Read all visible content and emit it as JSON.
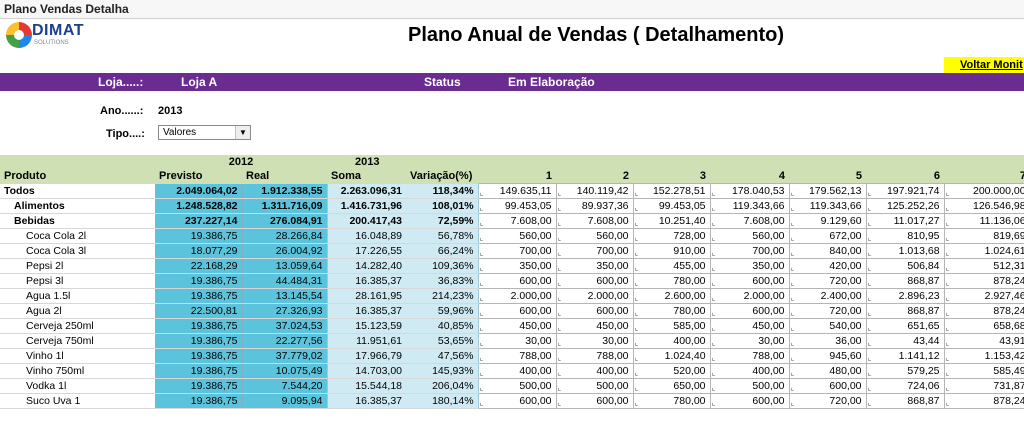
{
  "window": {
    "title": "Plano Vendas Detalha"
  },
  "logo": {
    "name": "DIMAT",
    "tagline": "SOLUTIONS"
  },
  "page_title": "Plano Anual de Vendas ( Detalhamento)",
  "back_button": "Voltar Monit",
  "colors": {
    "purple_bar": "#6b2c91",
    "header_green": "#cfe0b4",
    "blue_col": "#5bc4dc",
    "light_blue_col": "#cfeaf3",
    "back_button": "#ffff00"
  },
  "info_bar": {
    "store_label": "Loja.....:",
    "store_value": "Loja A",
    "status_label": "Status",
    "status_value": "Em Elaboração"
  },
  "form": {
    "year_label": "Ano......:",
    "year_value": "2013",
    "type_label": "Tipo....:",
    "type_value": "Valores",
    "type_arrow_icon": "chevron-down-icon"
  },
  "table": {
    "header_years": {
      "y2012": "2012",
      "y2013": "2013"
    },
    "columns": [
      "Produto",
      "Previsto",
      "Real",
      "Soma",
      "Variação(%)",
      "1",
      "2",
      "3",
      "4",
      "5",
      "6",
      "7"
    ],
    "rows": [
      {
        "level": 0,
        "name": "Todos",
        "previsto": "2.049.064,02",
        "real": "1.912.338,55",
        "soma": "2.263.096,31",
        "var": "118,34%",
        "m": [
          "149.635,11",
          "140.119,42",
          "152.278,51",
          "178.040,53",
          "179.562,13",
          "197.921,74",
          "200.000,00"
        ]
      },
      {
        "level": 1,
        "name": "Alimentos",
        "previsto": "1.248.528,82",
        "real": "1.311.716,09",
        "soma": "1.416.731,96",
        "var": "108,01%",
        "m": [
          "99.453,05",
          "89.937,36",
          "99.453,05",
          "119.343,66",
          "119.343,66",
          "125.252,26",
          "126.546,98"
        ]
      },
      {
        "level": 1,
        "name": "Bebidas",
        "previsto": "237.227,14",
        "real": "276.084,91",
        "soma": "200.417,43",
        "var": "72,59%",
        "m": [
          "7.608,00",
          "7.608,00",
          "10.251,40",
          "7.608,00",
          "9.129,60",
          "11.017,27",
          "11.136,06"
        ]
      },
      {
        "level": 2,
        "name": "Coca Cola  2l",
        "previsto": "19.386,75",
        "real": "28.266,84",
        "soma": "16.048,89",
        "var": "56,78%",
        "m": [
          "560,00",
          "560,00",
          "728,00",
          "560,00",
          "672,00",
          "810,95",
          "819,69"
        ]
      },
      {
        "level": 2,
        "name": "Coca Cola 3l",
        "previsto": "18.077,29",
        "real": "26.004,92",
        "soma": "17.226,55",
        "var": "66,24%",
        "m": [
          "700,00",
          "700,00",
          "910,00",
          "700,00",
          "840,00",
          "1.013,68",
          "1.024,61"
        ]
      },
      {
        "level": 2,
        "name": "Pepsi 2l",
        "previsto": "22.168,29",
        "real": "13.059,64",
        "soma": "14.282,40",
        "var": "109,36%",
        "m": [
          "350,00",
          "350,00",
          "455,00",
          "350,00",
          "420,00",
          "506,84",
          "512,31"
        ]
      },
      {
        "level": 2,
        "name": "Pepsi 3l",
        "previsto": "19.386,75",
        "real": "44.484,31",
        "soma": "16.385,37",
        "var": "36,83%",
        "m": [
          "600,00",
          "600,00",
          "780,00",
          "600,00",
          "720,00",
          "868,87",
          "878,24"
        ]
      },
      {
        "level": 2,
        "name": "Agua 1.5l",
        "previsto": "19.386,75",
        "real": "13.145,54",
        "soma": "28.161,95",
        "var": "214,23%",
        "m": [
          "2.000,00",
          "2.000,00",
          "2.600,00",
          "2.000,00",
          "2.400,00",
          "2.896,23",
          "2.927,46"
        ]
      },
      {
        "level": 2,
        "name": "Agua 2l",
        "previsto": "22.500,81",
        "real": "27.326,93",
        "soma": "16.385,37",
        "var": "59,96%",
        "m": [
          "600,00",
          "600,00",
          "780,00",
          "600,00",
          "720,00",
          "868,87",
          "878,24"
        ]
      },
      {
        "level": 2,
        "name": "Cerveja 250ml",
        "previsto": "19.386,75",
        "real": "37.024,53",
        "soma": "15.123,59",
        "var": "40,85%",
        "m": [
          "450,00",
          "450,00",
          "585,00",
          "450,00",
          "540,00",
          "651,65",
          "658,68"
        ]
      },
      {
        "level": 2,
        "name": "Cerveja 750ml",
        "previsto": "19.386,75",
        "real": "22.277,56",
        "soma": "11.951,61",
        "var": "53,65%",
        "m": [
          "30,00",
          "30,00",
          "400,00",
          "30,00",
          "36,00",
          "43,44",
          "43,91"
        ]
      },
      {
        "level": 2,
        "name": "Vinho 1l",
        "previsto": "19.386,75",
        "real": "37.779,02",
        "soma": "17.966,79",
        "var": "47,56%",
        "m": [
          "788,00",
          "788,00",
          "1.024,40",
          "788,00",
          "945,60",
          "1.141,12",
          "1.153,42"
        ]
      },
      {
        "level": 2,
        "name": "Vinho 750ml",
        "previsto": "19.386,75",
        "real": "10.075,49",
        "soma": "14.703,00",
        "var": "145,93%",
        "m": [
          "400,00",
          "400,00",
          "520,00",
          "400,00",
          "480,00",
          "579,25",
          "585,49"
        ]
      },
      {
        "level": 2,
        "name": "Vodka 1l",
        "previsto": "19.386,75",
        "real": "7.544,20",
        "soma": "15.544,18",
        "var": "206,04%",
        "m": [
          "500,00",
          "500,00",
          "650,00",
          "500,00",
          "600,00",
          "724,06",
          "731,87"
        ]
      },
      {
        "level": 2,
        "name": "Suco Uva 1",
        "previsto": "19.386,75",
        "real": "9.095,94",
        "soma": "16.385,37",
        "var": "180,14%",
        "m": [
          "600,00",
          "600,00",
          "780,00",
          "600,00",
          "720,00",
          "868,87",
          "878,24"
        ]
      }
    ]
  }
}
